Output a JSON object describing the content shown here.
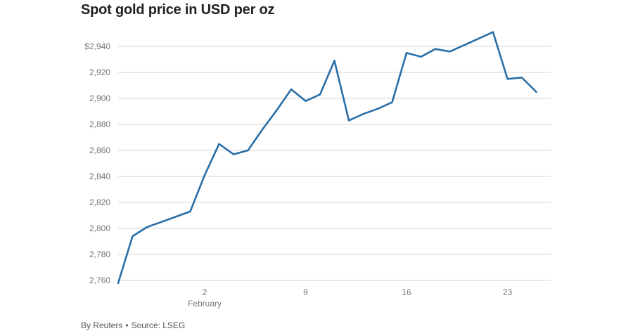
{
  "title": "Spot gold price in USD per oz",
  "footer": {
    "byline": "By Reuters",
    "separator": "•",
    "source": "Source: LSEG"
  },
  "colors": {
    "line": "#2a6fa8",
    "grid": "#d4d4d4",
    "tick_text": "#777777"
  },
  "chart_data": {
    "type": "line",
    "title": "Spot gold price in USD per oz",
    "xlabel": "",
    "ylabel": "",
    "ylim": [
      2758,
      2952
    ],
    "xlim": [
      "2025-01-27",
      "2025-02-26"
    ],
    "grid": true,
    "y_ticks": [
      {
        "value": 2760,
        "label": "2,760"
      },
      {
        "value": 2780,
        "label": "2,780"
      },
      {
        "value": 2800,
        "label": "2,800"
      },
      {
        "value": 2820,
        "label": "2,820"
      },
      {
        "value": 2840,
        "label": "2,840"
      },
      {
        "value": 2860,
        "label": "2,860"
      },
      {
        "value": 2880,
        "label": "2,880"
      },
      {
        "value": 2900,
        "label": "2,900"
      },
      {
        "value": 2920,
        "label": "2,920"
      },
      {
        "value": 2940,
        "label": "$2,940"
      }
    ],
    "x_ticks": [
      {
        "date": "2025-02-02",
        "label": "2",
        "sublabel": "February"
      },
      {
        "date": "2025-02-09",
        "label": "9",
        "sublabel": ""
      },
      {
        "date": "2025-02-16",
        "label": "16",
        "sublabel": ""
      },
      {
        "date": "2025-02-23",
        "label": "23",
        "sublabel": ""
      }
    ],
    "series": [
      {
        "points": [
          {
            "x": "2025-01-27",
            "y": 2758
          },
          {
            "x": "2025-01-28",
            "y": 2794
          },
          {
            "x": "2025-01-29",
            "y": 2801
          },
          {
            "x": "2025-01-30",
            "y": 2805
          },
          {
            "x": "2025-01-31",
            "y": 2809
          },
          {
            "x": "2025-02-01",
            "y": 2813
          },
          {
            "x": "2025-02-02",
            "y": 2841
          },
          {
            "x": "2025-02-03",
            "y": 2865
          },
          {
            "x": "2025-02-04",
            "y": 2857
          },
          {
            "x": "2025-02-05",
            "y": 2860
          },
          {
            "x": "2025-02-06",
            "y": 2876
          },
          {
            "x": "2025-02-07",
            "y": 2891
          },
          {
            "x": "2025-02-08",
            "y": 2907
          },
          {
            "x": "2025-02-09",
            "y": 2898
          },
          {
            "x": "2025-02-10",
            "y": 2903
          },
          {
            "x": "2025-02-11",
            "y": 2929
          },
          {
            "x": "2025-02-12",
            "y": 2883
          },
          {
            "x": "2025-02-13",
            "y": 2888
          },
          {
            "x": "2025-02-14",
            "y": 2892
          },
          {
            "x": "2025-02-15",
            "y": 2897
          },
          {
            "x": "2025-02-16",
            "y": 2935
          },
          {
            "x": "2025-02-17",
            "y": 2932
          },
          {
            "x": "2025-02-18",
            "y": 2938
          },
          {
            "x": "2025-02-19",
            "y": 2936
          },
          {
            "x": "2025-02-20",
            "y": 2941
          },
          {
            "x": "2025-02-21",
            "y": 2946
          },
          {
            "x": "2025-02-22",
            "y": 2951
          },
          {
            "x": "2025-02-23",
            "y": 2915
          },
          {
            "x": "2025-02-24",
            "y": 2916
          },
          {
            "x": "2025-02-25",
            "y": 2905
          }
        ]
      }
    ]
  }
}
